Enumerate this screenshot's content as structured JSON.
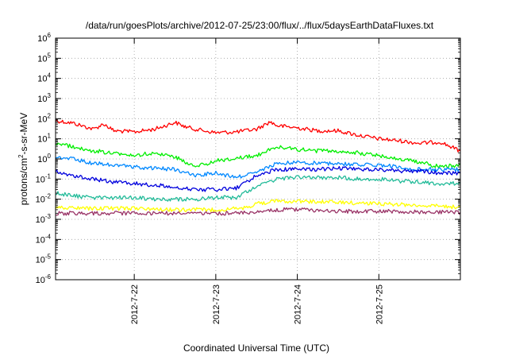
{
  "chart_data": {
    "type": "line",
    "title": "/data/run/goesPlots/archive/2012-07-25/23:00/flux/../flux/5daysEarthDataFluxes.txt",
    "xlabel": "Coordinated Universal Time (UTC)",
    "ylabel": "protons/cm²-s-sr-MeV",
    "ylabel_parts": {
      "before": "protons/cm",
      "sup": "2",
      "after": "-s-sr-MeV"
    },
    "y_scale": "log",
    "ylim": [
      1e-06,
      1000000.0
    ],
    "y_ticks": [
      {
        "exp": "-6"
      },
      {
        "exp": "-5"
      },
      {
        "exp": "-4"
      },
      {
        "exp": "-3"
      },
      {
        "exp": "-2"
      },
      {
        "exp": "-1"
      },
      {
        "exp": "0"
      },
      {
        "exp": "1"
      },
      {
        "exp": "2"
      },
      {
        "exp": "3"
      },
      {
        "exp": "4"
      },
      {
        "exp": "5"
      },
      {
        "exp": "6"
      }
    ],
    "y_tick_base": "10",
    "xlim": [
      "2012-07-21 00:50",
      "2012-07-26 00:00"
    ],
    "x_ticks": [
      "2012-7-22",
      "2012-7-23",
      "2012-7-24",
      "2012-7-25"
    ],
    "grid": true,
    "legend": "none",
    "series": [
      {
        "color": "#ff0000",
        "x": [
          "2012-07-21 00:50",
          "2012-07-21 06:00",
          "2012-07-21 12:00",
          "2012-07-21 15:00",
          "2012-07-21 18:00",
          "2012-07-22 00:00",
          "2012-07-22 06:00",
          "2012-07-22 12:00",
          "2012-07-22 15:00",
          "2012-07-22 18:00",
          "2012-07-23 00:00",
          "2012-07-23 06:00",
          "2012-07-23 12:00",
          "2012-07-23 16:00",
          "2012-07-23 18:00",
          "2012-07-24 00:00",
          "2012-07-24 06:00",
          "2012-07-24 12:00",
          "2012-07-24 18:00",
          "2012-07-25 00:00",
          "2012-07-25 06:00",
          "2012-07-25 12:00",
          "2012-07-25 18:00",
          "2012-07-26 00:00"
        ],
        "y": [
          80,
          60,
          30,
          55,
          25,
          22,
          30,
          65,
          40,
          30,
          20,
          22,
          30,
          70,
          45,
          35,
          25,
          25,
          15,
          10,
          8,
          6,
          7,
          2.5
        ]
      },
      {
        "color": "#00ee00",
        "x": [
          "2012-07-21 00:50",
          "2012-07-21 06:00",
          "2012-07-21 12:00",
          "2012-07-21 18:00",
          "2012-07-22 00:00",
          "2012-07-22 06:00",
          "2012-07-22 12:00",
          "2012-07-22 18:00",
          "2012-07-23 00:00",
          "2012-07-23 08:00",
          "2012-07-23 12:00",
          "2012-07-23 18:00",
          "2012-07-24 00:00",
          "2012-07-24 06:00",
          "2012-07-24 12:00",
          "2012-07-24 18:00",
          "2012-07-25 00:00",
          "2012-07-25 06:00",
          "2012-07-25 12:00",
          "2012-07-25 18:00",
          "2012-07-26 00:00"
        ],
        "y": [
          6,
          4,
          2.5,
          2,
          1.5,
          2,
          1.3,
          0.4,
          0.8,
          1.2,
          1.5,
          4,
          3,
          2.5,
          2.5,
          2,
          1.5,
          1,
          0.7,
          0.4,
          0.5
        ]
      },
      {
        "color": "#0088ff",
        "x": [
          "2012-07-21 00:50",
          "2012-07-21 06:00",
          "2012-07-21 12:00",
          "2012-07-21 18:00",
          "2012-07-22 00:00",
          "2012-07-22 06:00",
          "2012-07-22 12:00",
          "2012-07-22 18:00",
          "2012-07-23 00:00",
          "2012-07-23 06:00",
          "2012-07-23 12:00",
          "2012-07-23 18:00",
          "2012-07-24 00:00",
          "2012-07-24 06:00",
          "2012-07-24 12:00",
          "2012-07-24 18:00",
          "2012-07-25 00:00",
          "2012-07-25 06:00",
          "2012-07-25 12:00",
          "2012-07-25 18:00",
          "2012-07-26 00:00"
        ],
        "y": [
          1.2,
          1,
          0.6,
          0.5,
          0.4,
          0.35,
          0.3,
          0.15,
          0.2,
          0.12,
          0.2,
          0.6,
          0.7,
          0.6,
          0.6,
          0.5,
          0.5,
          0.4,
          0.3,
          0.3,
          0.3
        ]
      },
      {
        "color": "#0000dd",
        "x": [
          "2012-07-21 00:50",
          "2012-07-21 06:00",
          "2012-07-21 12:00",
          "2012-07-21 18:00",
          "2012-07-22 00:00",
          "2012-07-22 06:00",
          "2012-07-22 12:00",
          "2012-07-22 18:00",
          "2012-07-23 00:00",
          "2012-07-23 06:00",
          "2012-07-23 12:00",
          "2012-07-23 18:00",
          "2012-07-24 00:00",
          "2012-07-24 06:00",
          "2012-07-24 12:00",
          "2012-07-24 18:00",
          "2012-07-25 00:00",
          "2012-07-25 06:00",
          "2012-07-25 12:00",
          "2012-07-25 18:00",
          "2012-07-26 00:00"
        ],
        "y": [
          0.25,
          0.15,
          0.1,
          0.07,
          0.06,
          0.05,
          0.04,
          0.03,
          0.03,
          0.035,
          0.15,
          0.3,
          0.3,
          0.3,
          0.35,
          0.3,
          0.3,
          0.25,
          0.25,
          0.2,
          0.2
        ]
      },
      {
        "color": "#22bb99",
        "x": [
          "2012-07-21 00:50",
          "2012-07-21 06:00",
          "2012-07-21 12:00",
          "2012-07-21 18:00",
          "2012-07-22 00:00",
          "2012-07-22 06:00",
          "2012-07-22 12:00",
          "2012-07-22 18:00",
          "2012-07-23 00:00",
          "2012-07-23 06:00",
          "2012-07-23 12:00",
          "2012-07-23 18:00",
          "2012-07-24 00:00",
          "2012-07-24 06:00",
          "2012-07-24 12:00",
          "2012-07-24 18:00",
          "2012-07-25 00:00",
          "2012-07-25 06:00",
          "2012-07-25 12:00",
          "2012-07-25 18:00",
          "2012-07-26 00:00"
        ],
        "y": [
          0.02,
          0.015,
          0.012,
          0.012,
          0.012,
          0.01,
          0.01,
          0.01,
          0.012,
          0.012,
          0.04,
          0.1,
          0.12,
          0.12,
          0.12,
          0.1,
          0.1,
          0.08,
          0.07,
          0.06,
          0.06
        ]
      },
      {
        "color": "#ffff00",
        "x": [
          "2012-07-21 00:50",
          "2012-07-21 12:00",
          "2012-07-22 00:00",
          "2012-07-22 12:00",
          "2012-07-23 00:00",
          "2012-07-23 08:00",
          "2012-07-23 12:00",
          "2012-07-23 18:00",
          "2012-07-24 00:00",
          "2012-07-24 12:00",
          "2012-07-25 00:00",
          "2012-07-25 12:00",
          "2012-07-26 00:00"
        ],
        "y": [
          0.004,
          0.0035,
          0.0035,
          0.003,
          0.003,
          0.0035,
          0.006,
          0.008,
          0.008,
          0.007,
          0.006,
          0.005,
          0.004
        ]
      },
      {
        "color": "#993366",
        "x": [
          "2012-07-21 00:50",
          "2012-07-21 12:00",
          "2012-07-22 00:00",
          "2012-07-22 12:00",
          "2012-07-23 00:00",
          "2012-07-23 08:00",
          "2012-07-23 12:00",
          "2012-07-23 18:00",
          "2012-07-24 00:00",
          "2012-07-24 12:00",
          "2012-07-25 00:00",
          "2012-07-25 12:00",
          "2012-07-26 00:00"
        ],
        "y": [
          0.002,
          0.002,
          0.002,
          0.002,
          0.002,
          0.002,
          0.0025,
          0.003,
          0.003,
          0.0025,
          0.0025,
          0.0023,
          0.0022
        ]
      }
    ]
  }
}
